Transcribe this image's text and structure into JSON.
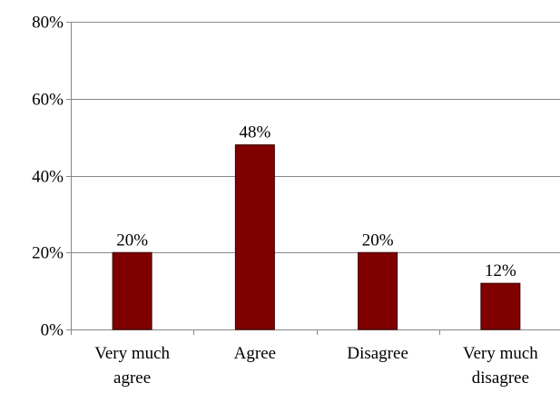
{
  "chart_data": {
    "type": "bar",
    "title": "",
    "xlabel": "",
    "ylabel": "",
    "categories": [
      [
        "Very much",
        "agree"
      ],
      [
        "Agree"
      ],
      [
        "Disagree"
      ],
      [
        "Very much",
        "disagree"
      ]
    ],
    "values": [
      20,
      48,
      20,
      12
    ],
    "data_labels": [
      "20%",
      "48%",
      "20%",
      "12%"
    ],
    "ylim": [
      0,
      80
    ],
    "yticks": [
      0,
      20,
      40,
      60,
      80
    ],
    "ytick_labels": [
      "0%",
      "20%",
      "40%",
      "60%",
      "80%"
    ],
    "grid": "horizontal",
    "legend": "none",
    "colors": {
      "bar": "#800000",
      "bar_stroke": "#3a0000",
      "grid": "#888888",
      "axis": "#888888"
    }
  }
}
